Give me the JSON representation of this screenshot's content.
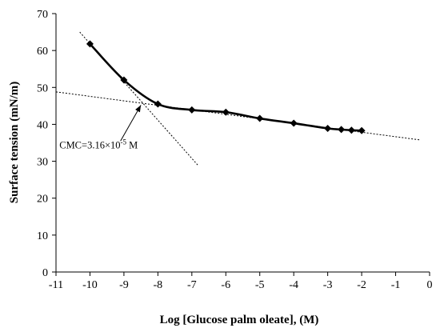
{
  "chart_data": {
    "type": "line",
    "title": "",
    "xlabel": "Log [Glucose palm oleate], (M)",
    "ylabel": "Surface tension (mN/m)",
    "xlim": [
      -11,
      0
    ],
    "ylim": [
      0,
      70
    ],
    "xticks": [
      -11,
      -10,
      -9,
      -8,
      -7,
      -6,
      -5,
      -4,
      -3,
      -2,
      -1,
      0
    ],
    "yticks": [
      0,
      10,
      20,
      30,
      40,
      50,
      60,
      70
    ],
    "grid": false,
    "legend": "none",
    "colors": {
      "series": "#000000",
      "axis": "#000000"
    },
    "series": [
      {
        "x": [
          -10,
          -9,
          -8,
          -7,
          -6,
          -5,
          -4,
          -3,
          -2.6,
          -2.3,
          -2
        ],
        "y": [
          61.8,
          52,
          45.5,
          43.9,
          43.3,
          41.6,
          40.3,
          38.9,
          38.6,
          38.4,
          38.3
        ]
      }
    ],
    "fit_lines": [
      {
        "x": [
          -10.3,
          -6.8
        ],
        "y": [
          65,
          28.7
        ]
      },
      {
        "x": [
          -11,
          -0.3
        ],
        "y": [
          48.8,
          35.8
        ]
      }
    ],
    "annotation": {
      "prefix": "CMC=3.16×10",
      "exponent": "-5",
      "suffix": " M",
      "arrow_from": [
        -9.1,
        35.5
      ],
      "arrow_to": [
        -8.5,
        45.2
      ],
      "text_at": [
        -10.9,
        33.5
      ]
    }
  }
}
